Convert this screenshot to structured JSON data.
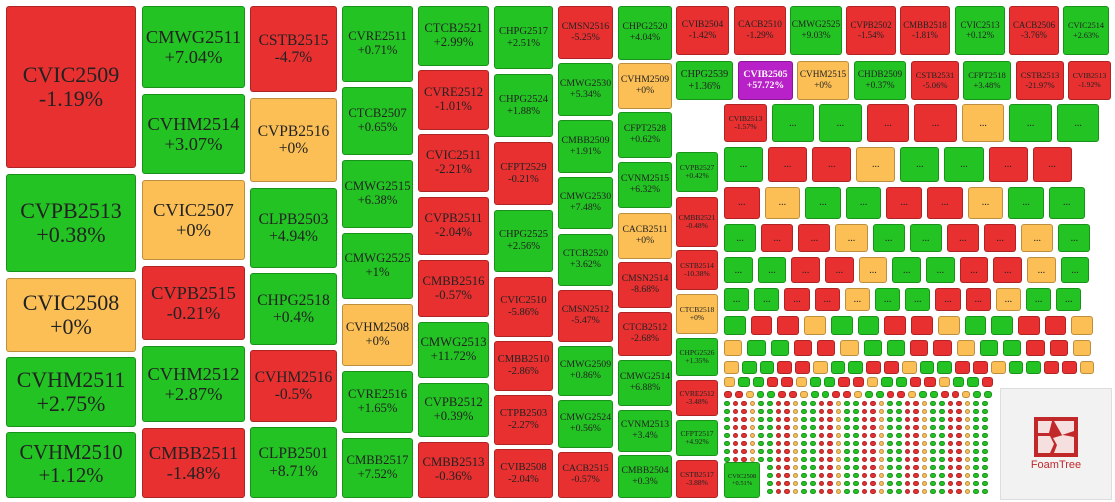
{
  "tiles": [
    {
      "label": "CVIC2509",
      "change": "-1.19%",
      "color": "#e83030"
    },
    {
      "label": "CVPB2513",
      "change": "+0.38%",
      "color": "#22c322"
    },
    {
      "label": "CVIC2508",
      "change": "+0%",
      "color": "#fbbf55"
    },
    {
      "label": "CVHM2511",
      "change": "+2.75%",
      "color": "#22c322"
    },
    {
      "label": "CVHM2510",
      "change": "+1.12%",
      "color": "#22c322"
    },
    {
      "label": "CMWG2511",
      "change": "+7.04%",
      "color": "#22c322"
    },
    {
      "label": "CVHM2514",
      "change": "+3.07%",
      "color": "#22c322"
    },
    {
      "label": "CVIC2507",
      "change": "+0%",
      "color": "#fbbf55"
    },
    {
      "label": "CVPB2515",
      "change": "-0.21%",
      "color": "#e83030"
    },
    {
      "label": "CVHM2512",
      "change": "+2.87%",
      "color": "#22c322"
    },
    {
      "label": "CMBB2511",
      "change": "-1.48%",
      "color": "#e83030"
    },
    {
      "label": "CSTB2515",
      "change": "-4.7%",
      "color": "#e83030"
    },
    {
      "label": "CVPB2516",
      "change": "+0%",
      "color": "#fbbf55"
    },
    {
      "label": "CLPB2503",
      "change": "+4.94%",
      "color": "#22c322"
    },
    {
      "label": "CHPG2518",
      "change": "+0.4%",
      "color": "#22c322"
    },
    {
      "label": "CVHM2516",
      "change": "-0.5%",
      "color": "#e83030"
    },
    {
      "label": "CLPB2501",
      "change": "+8.71%",
      "color": "#22c322"
    },
    {
      "label": "CVRE2511",
      "change": "+0.71%",
      "color": "#22c322"
    },
    {
      "label": "CTCB2507",
      "change": "+0.65%",
      "color": "#22c322"
    },
    {
      "label": "CMWG2515",
      "change": "+6.38%",
      "color": "#22c322"
    },
    {
      "label": "CMWG2525",
      "change": "+1%",
      "color": "#22c322"
    },
    {
      "label": "CVHM2508",
      "change": "+0%",
      "color": "#fbbf55"
    },
    {
      "label": "CVRE2516",
      "change": "+1.65%",
      "color": "#22c322"
    },
    {
      "label": "CMBB2517",
      "change": "+7.52%",
      "color": "#22c322"
    },
    {
      "label": "CTCB2521",
      "change": "+2.99%",
      "color": "#22c322"
    },
    {
      "label": "CVRE2512",
      "change": "-1.01%",
      "color": "#e83030"
    },
    {
      "label": "CVIC2511",
      "change": "-2.21%",
      "color": "#e83030"
    },
    {
      "label": "CVPB2511",
      "change": "-2.04%",
      "color": "#e83030"
    },
    {
      "label": "CMBB2516",
      "change": "-0.57%",
      "color": "#e83030"
    },
    {
      "label": "CMWG2513",
      "change": "+11.72%",
      "color": "#22c322"
    },
    {
      "label": "CVPB2512",
      "change": "+0.39%",
      "color": "#22c322"
    },
    {
      "label": "CMBB2513",
      "change": "-0.36%",
      "color": "#e83030"
    },
    {
      "label": "CHPG2517",
      "change": "+2.51%",
      "color": "#22c322"
    },
    {
      "label": "CHPG2524",
      "change": "+1.88%",
      "color": "#22c322"
    },
    {
      "label": "CFPT2529",
      "change": "-0.21%",
      "color": "#e83030"
    },
    {
      "label": "CHPG2525",
      "change": "+2.56%",
      "color": "#22c322"
    },
    {
      "label": "CVIC2510",
      "change": "-5.86%",
      "color": "#e83030"
    },
    {
      "label": "CMBB2510",
      "change": "-2.86%",
      "color": "#e83030"
    },
    {
      "label": "CTPB2503",
      "change": "-2.27%",
      "color": "#e83030"
    },
    {
      "label": "CVIB2508",
      "change": "-2.04%",
      "color": "#e83030"
    },
    {
      "label": "CMSN2516",
      "change": "-5.25%",
      "color": "#e83030"
    },
    {
      "label": "CMWG2530",
      "change": "+5.34%",
      "color": "#22c322"
    },
    {
      "label": "CMBB2509",
      "change": "+1.91%",
      "color": "#22c322"
    },
    {
      "label": "CMWG2530",
      "change": "+7.48%",
      "color": "#22c322"
    },
    {
      "label": "CTCB2520",
      "change": "+3.62%",
      "color": "#22c322"
    },
    {
      "label": "CMSN2512",
      "change": "-5.47%",
      "color": "#e83030"
    },
    {
      "label": "CMWG2509",
      "change": "+0.86%",
      "color": "#22c322"
    },
    {
      "label": "CMWG2524",
      "change": "+0.56%",
      "color": "#22c322"
    },
    {
      "label": "CACB2515",
      "change": "-0.57%",
      "color": "#e83030"
    },
    {
      "label": "CHPG2520",
      "change": "+4.04%",
      "color": "#22c322"
    },
    {
      "label": "CVHM2509",
      "change": "+0%",
      "color": "#fbbf55"
    },
    {
      "label": "CFPT2528",
      "change": "+0.62%",
      "color": "#22c322"
    },
    {
      "label": "CVNM2515",
      "change": "+6.32%",
      "color": "#22c322"
    },
    {
      "label": "CACB2511",
      "change": "+0%",
      "color": "#fbbf55"
    },
    {
      "label": "CMSN2514",
      "change": "-8.68%",
      "color": "#e83030"
    },
    {
      "label": "CTCB2512",
      "change": "-2.68%",
      "color": "#e83030"
    },
    {
      "label": "CMWG2514",
      "change": "+6.88%",
      "color": "#22c322"
    },
    {
      "label": "CVNM2513",
      "change": "+3.4%",
      "color": "#22c322"
    },
    {
      "label": "CMBB2504",
      "change": "+0.3%",
      "color": "#22c322"
    },
    {
      "label": "CVPB2527",
      "change": "+0.42%",
      "color": "#22c322"
    },
    {
      "label": "CMBB2521",
      "change": "-0.48%",
      "color": "#e83030"
    },
    {
      "label": "CSTB2514",
      "change": "-10.38%",
      "color": "#e83030"
    },
    {
      "label": "CTCB2518",
      "change": "+0%",
      "color": "#fbbf55"
    },
    {
      "label": "CHPG2526",
      "change": "+1.35%",
      "color": "#22c322"
    },
    {
      "label": "CVRE2512",
      "change": "-3.48%",
      "color": "#e83030"
    },
    {
      "label": "CFPT2517",
      "change": "+4.92%",
      "color": "#22c322"
    },
    {
      "label": "CSTB2517",
      "change": "-3.88%",
      "color": "#e83030"
    },
    {
      "label": "CVIB2504",
      "change": "-1.42%",
      "color": "#e83030"
    },
    {
      "label": "CACB2510",
      "change": "-1.29%",
      "color": "#e83030"
    },
    {
      "label": "CMWG2525",
      "change": "+9.03%",
      "color": "#22c322"
    },
    {
      "label": "CVPB2502",
      "change": "-1.54%",
      "color": "#e83030"
    },
    {
      "label": "CMBB2518",
      "change": "-1.81%",
      "color": "#e83030"
    },
    {
      "label": "CVIC2513",
      "change": "+0.12%",
      "color": "#22c322"
    },
    {
      "label": "CACB2506",
      "change": "-3.76%",
      "color": "#e83030"
    },
    {
      "label": "CVIC2514",
      "change": "+2.63%",
      "color": "#22c322"
    },
    {
      "label": "CHPG2539",
      "change": "+1.36%",
      "color": "#22c322"
    },
    {
      "label": "CVIB2505",
      "change": "+57.72%",
      "color": "#b820c8"
    },
    {
      "label": "CVHM2515",
      "change": "+0%",
      "color": "#fbbf55"
    },
    {
      "label": "CHDB2509",
      "change": "+0.37%",
      "color": "#22c322"
    },
    {
      "label": "CSTB2531",
      "change": "-5.06%",
      "color": "#e83030"
    },
    {
      "label": "CFPT2518",
      "change": "+3.48%",
      "color": "#22c322"
    },
    {
      "label": "CSTB2513",
      "change": "-21.97%",
      "color": "#e83030"
    },
    {
      "label": "CVIB2513",
      "change": "-1.92%",
      "color": "#e83030"
    },
    {
      "label": "CVIB2513",
      "change": "-1.57%",
      "color": "#e83030"
    },
    {
      "label": "CVIC2508",
      "change": "+0.51%",
      "color": "#22c322"
    }
  ],
  "more": "...",
  "logo": "FoamTree"
}
